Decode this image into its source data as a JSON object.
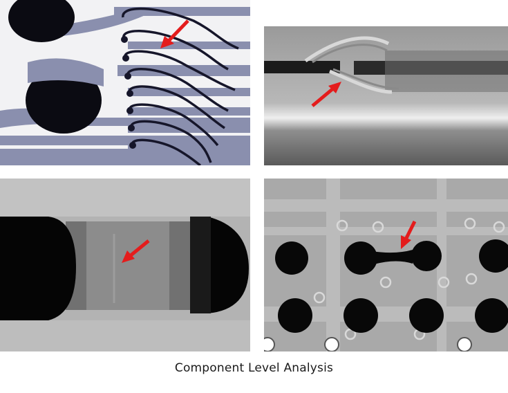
{
  "figure": {
    "caption": "Component Level Analysis",
    "panels": [
      {
        "subject": "bond-wire-xray",
        "accent": "#e41c1c"
      },
      {
        "subject": "wire-bond-side-xray",
        "accent": "#e41c1c"
      },
      {
        "subject": "solder-joint-void-xray",
        "accent": "#e41c1c"
      },
      {
        "subject": "bga-solder-bridge-xray",
        "accent": "#e41c1c"
      }
    ]
  }
}
